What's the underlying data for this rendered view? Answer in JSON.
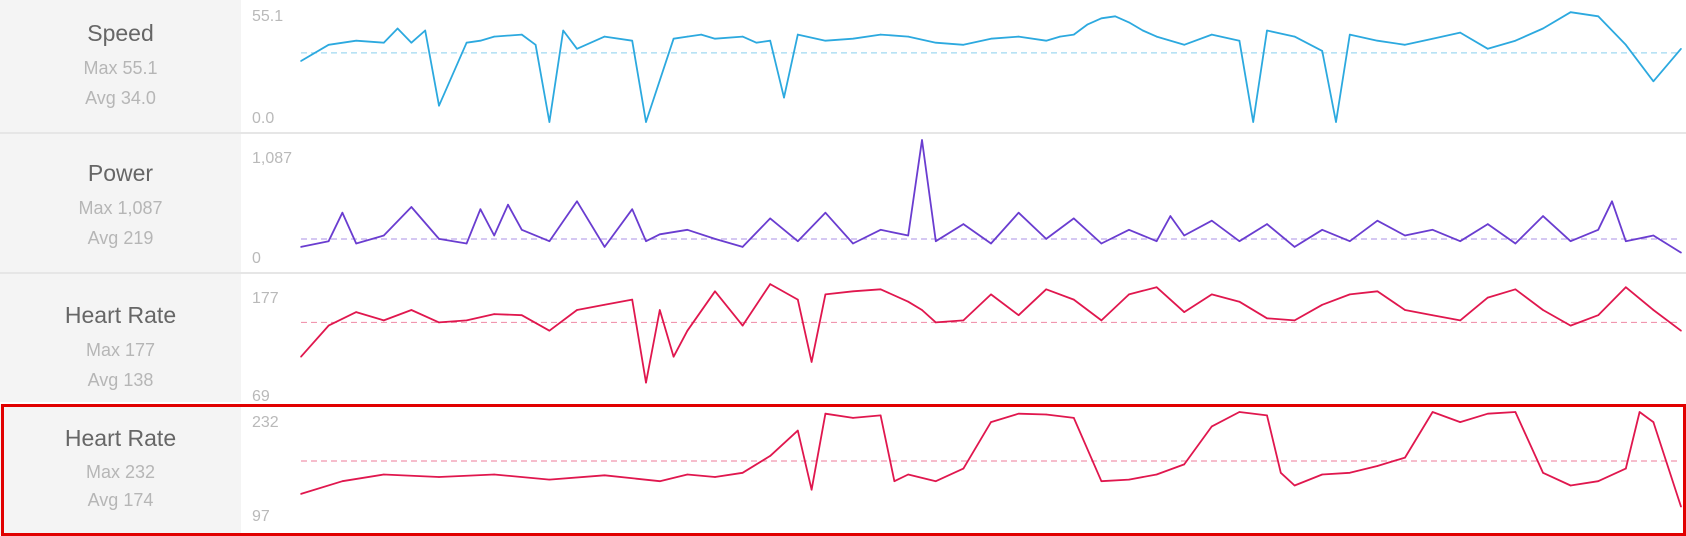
{
  "rows": [
    {
      "id": "speed",
      "title": "Speed",
      "max": "Max 55.1",
      "avg": "Avg 34.0",
      "axis_max": "55.1",
      "axis_min": "0.0",
      "color": "#2ca9df"
    },
    {
      "id": "power",
      "title": "Power",
      "max": "Max 1,087",
      "avg": "Avg 219",
      "axis_max": "1,087",
      "axis_min": "0",
      "color": "#6a3dd0"
    },
    {
      "id": "hr1",
      "title": "Heart Rate",
      "max": "Max 177",
      "avg": "Avg 138",
      "axis_max": "177",
      "axis_min": "69",
      "color": "#e0174e"
    },
    {
      "id": "hr2",
      "title": "Heart Rate",
      "max": "Max 232",
      "avg": "Avg 174",
      "axis_max": "232",
      "axis_min": "97",
      "color": "#e0174e"
    }
  ],
  "highlight_color": "#e10000",
  "chart_data": [
    {
      "type": "line",
      "name": "Speed",
      "ylim": [
        0,
        55.1
      ],
      "avg": 34.0,
      "x": [
        0,
        2,
        4,
        6,
        7,
        8,
        9,
        10,
        12,
        13,
        14,
        16,
        17,
        18,
        19,
        20,
        22,
        24,
        25,
        27,
        28,
        29,
        30,
        32,
        33,
        34,
        35,
        36,
        38,
        40,
        42,
        44,
        46,
        48,
        50,
        52,
        54,
        55,
        56,
        57,
        58,
        59,
        60,
        61,
        62,
        64,
        66,
        68,
        69,
        70,
        72,
        74,
        75,
        76,
        78,
        80,
        82,
        84,
        86,
        88,
        90,
        92,
        94,
        96,
        98,
        100
      ],
      "values": [
        30,
        38,
        40,
        39,
        46,
        39,
        45,
        8,
        39,
        40,
        42,
        43,
        38,
        0,
        45,
        36,
        42,
        40,
        0,
        41,
        42,
        43,
        41,
        42,
        39,
        40,
        12,
        43,
        40,
        41,
        43,
        42,
        39,
        38,
        41,
        42,
        40,
        42,
        43,
        48,
        51,
        52,
        49,
        45,
        42,
        38,
        43,
        40,
        0,
        45,
        42,
        35,
        0,
        43,
        40,
        38,
        41,
        44,
        36,
        40,
        46,
        54,
        52,
        38,
        20,
        36
      ]
    },
    {
      "type": "line",
      "name": "Power",
      "ylim": [
        0,
        1087
      ],
      "avg": 219,
      "x": [
        0,
        2,
        3,
        4,
        6,
        8,
        10,
        12,
        13,
        14,
        15,
        16,
        18,
        20,
        22,
        24,
        25,
        26,
        28,
        30,
        32,
        34,
        36,
        38,
        40,
        42,
        44,
        45,
        46,
        48,
        50,
        52,
        54,
        56,
        58,
        60,
        62,
        63,
        64,
        66,
        68,
        70,
        72,
        74,
        76,
        78,
        80,
        82,
        84,
        86,
        88,
        90,
        92,
        94,
        95,
        96,
        98,
        100
      ],
      "values": [
        150,
        200,
        450,
        180,
        250,
        500,
        220,
        180,
        480,
        250,
        520,
        300,
        200,
        550,
        150,
        480,
        200,
        260,
        300,
        220,
        150,
        400,
        200,
        450,
        180,
        300,
        250,
        1087,
        200,
        350,
        180,
        450,
        220,
        400,
        180,
        300,
        200,
        420,
        250,
        380,
        200,
        350,
        150,
        300,
        200,
        380,
        250,
        300,
        200,
        350,
        180,
        420,
        200,
        300,
        550,
        200,
        250,
        100
      ]
    },
    {
      "type": "line",
      "name": "Heart Rate",
      "ylim": [
        69,
        177
      ],
      "avg": 138,
      "x": [
        0,
        2,
        4,
        6,
        8,
        10,
        12,
        14,
        16,
        18,
        20,
        22,
        24,
        25,
        26,
        27,
        28,
        30,
        32,
        34,
        36,
        37,
        38,
        40,
        42,
        44,
        45,
        46,
        48,
        50,
        52,
        54,
        56,
        58,
        60,
        62,
        64,
        66,
        68,
        70,
        72,
        74,
        76,
        78,
        80,
        82,
        84,
        86,
        88,
        90,
        92,
        94,
        96,
        98,
        100
      ],
      "values": [
        105,
        135,
        148,
        140,
        150,
        138,
        140,
        146,
        145,
        130,
        150,
        155,
        160,
        80,
        150,
        105,
        130,
        168,
        135,
        175,
        160,
        100,
        165,
        168,
        170,
        158,
        150,
        138,
        140,
        165,
        145,
        170,
        160,
        140,
        165,
        172,
        148,
        165,
        158,
        142,
        140,
        155,
        165,
        168,
        150,
        145,
        140,
        162,
        170,
        150,
        135,
        145,
        172,
        150,
        130
      ]
    },
    {
      "type": "line",
      "name": "Heart Rate",
      "ylim": [
        97,
        232
      ],
      "avg": 174,
      "x": [
        0,
        3,
        6,
        10,
        14,
        18,
        22,
        26,
        28,
        30,
        32,
        34,
        36,
        37,
        38,
        40,
        42,
        43,
        44,
        46,
        48,
        50,
        52,
        54,
        56,
        58,
        60,
        62,
        64,
        66,
        68,
        70,
        71,
        72,
        74,
        76,
        78,
        80,
        82,
        84,
        86,
        88,
        90,
        92,
        94,
        96,
        97,
        98,
        100
      ],
      "values": [
        135,
        150,
        158,
        155,
        158,
        152,
        157,
        150,
        158,
        155,
        160,
        180,
        210,
        140,
        230,
        225,
        228,
        150,
        158,
        150,
        165,
        220,
        230,
        229,
        225,
        150,
        152,
        158,
        170,
        215,
        232,
        228,
        160,
        145,
        158,
        160,
        168,
        178,
        232,
        220,
        230,
        232,
        160,
        145,
        150,
        165,
        232,
        220,
        120
      ]
    }
  ]
}
